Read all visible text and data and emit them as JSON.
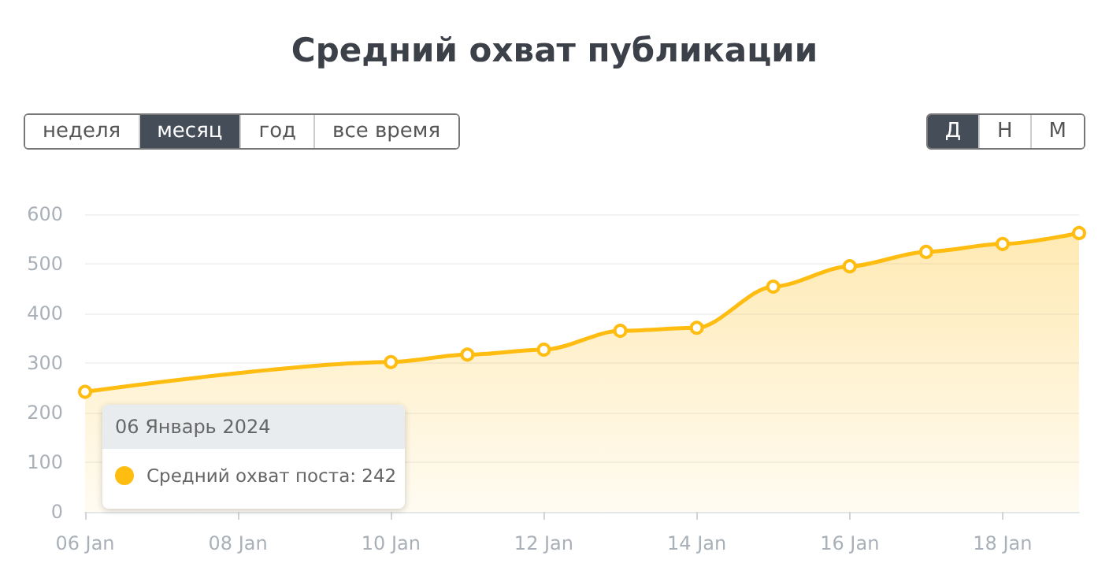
{
  "chart_data": {
    "type": "area",
    "title": "Средний охват публикации",
    "x": [
      "2024-01-06",
      "2024-01-07",
      "2024-01-08",
      "2024-01-09",
      "2024-01-10",
      "2024-01-11",
      "2024-01-12",
      "2024-01-13",
      "2024-01-14",
      "2024-01-15",
      "2024-01-16",
      "2024-01-17",
      "2024-01-18",
      "2024-01-19"
    ],
    "series": [
      {
        "color": "#ffbc11",
        "values": [
          242,
          null,
          null,
          null,
          302,
          317,
          327,
          365,
          371,
          454,
          495,
          524,
          540,
          562
        ]
      }
    ],
    "xlim": [
      "2024-01-06",
      "2024-01-19"
    ],
    "xticks": [
      {
        "value": "2024-01-06",
        "label": "06 Jan"
      },
      {
        "value": "2024-01-08",
        "label": "08 Jan"
      },
      {
        "value": "2024-01-10",
        "label": "10 Jan"
      },
      {
        "value": "2024-01-12",
        "label": "12 Jan"
      },
      {
        "value": "2024-01-14",
        "label": "14 Jan"
      },
      {
        "value": "2024-01-16",
        "label": "16 Jan"
      },
      {
        "value": "2024-01-18",
        "label": "18 Jan"
      }
    ],
    "ylim": [
      0,
      600
    ],
    "yticks": [
      0,
      100,
      200,
      300,
      400,
      500,
      600
    ],
    "grid": "y",
    "marker": "circle",
    "line_style": "solid",
    "annotations": [
      "неделя",
      "месяц",
      "год",
      "все время",
      "Д",
      "Н",
      "М",
      {
        "text": "06 Январь 2024",
        "x": "2024-01-06",
        "y": 242
      },
      "Средний охват поста: 242"
    ]
  }
}
